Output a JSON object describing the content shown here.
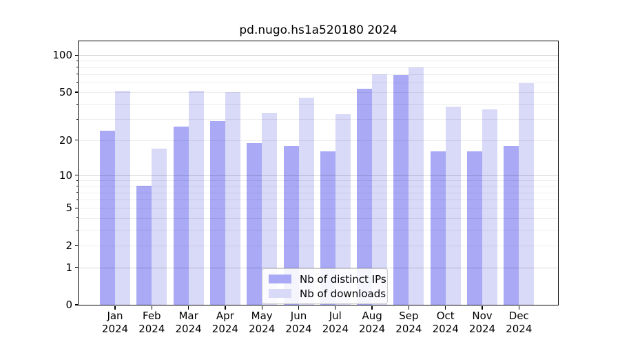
{
  "title": "pd.nugo.hs1a520180 2024",
  "chart_data": {
    "type": "bar",
    "title": "pd.nugo.hs1a520180 2024",
    "categories": [
      "Jan",
      "Feb",
      "Mar",
      "Apr",
      "May",
      "Jun",
      "Jul",
      "Aug",
      "Sep",
      "Oct",
      "Nov",
      "Dec"
    ],
    "x_tick_year": "2024",
    "series": [
      {
        "name": "Nb of distinct IPs",
        "color": "#a9a9f6",
        "values": [
          24,
          8,
          26,
          29,
          19,
          18,
          16,
          53,
          69,
          16,
          16,
          18
        ]
      },
      {
        "name": "Nb of downloads",
        "color": "#d9d9f8",
        "values": [
          51,
          17,
          51,
          50,
          34,
          45,
          33,
          70,
          80,
          38,
          36,
          59
        ]
      }
    ],
    "y_scale": "log10(1+v)",
    "y_tick_labels": [
      100,
      50,
      20,
      10,
      5,
      2,
      1,
      0
    ],
    "y_major_gridlines": [
      1,
      10,
      100
    ],
    "y_minor_gridlines": [
      2,
      3,
      4,
      5,
      6,
      7,
      8,
      9,
      20,
      30,
      40,
      50,
      60,
      70,
      80,
      90
    ],
    "ylim": [
      0,
      131
    ],
    "grid": true,
    "legend_position": "lower center",
    "xlabel": "",
    "ylabel": ""
  }
}
